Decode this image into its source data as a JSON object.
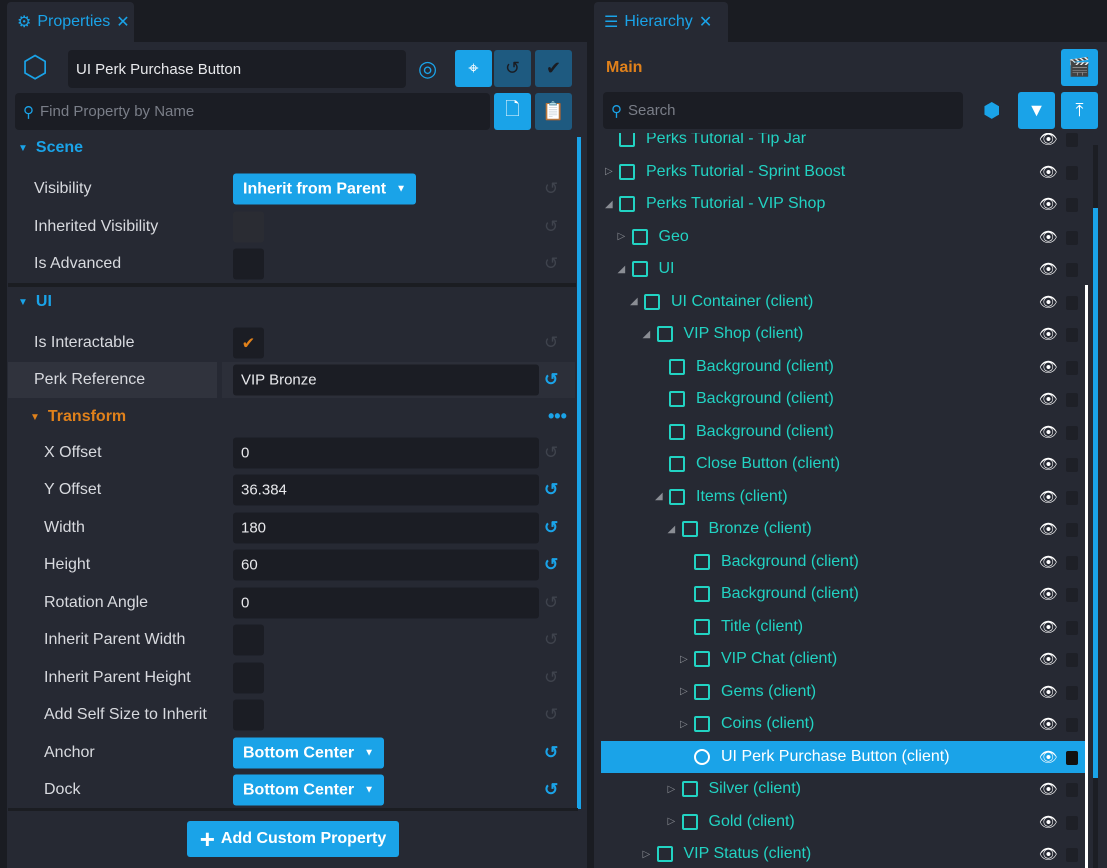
{
  "properties": {
    "tab_label": "Properties",
    "object_name": "UI Perk Purchase Button",
    "search_placeholder": "Find Property by Name",
    "sections": {
      "scene": "Scene",
      "ui": "UI",
      "transform": "Transform"
    },
    "rows": {
      "visibility": {
        "label": "Visibility",
        "value": "Inherit from Parent"
      },
      "inherited_visibility": {
        "label": "Inherited Visibility"
      },
      "is_advanced": {
        "label": "Is Advanced"
      },
      "is_interactable": {
        "label": "Is Interactable",
        "checked": true
      },
      "perk_reference": {
        "label": "Perk Reference",
        "value": "VIP Bronze"
      },
      "x_offset": {
        "label": "X Offset",
        "value": "0"
      },
      "y_offset": {
        "label": "Y Offset",
        "value": "36.384"
      },
      "width": {
        "label": "Width",
        "value": "180"
      },
      "height": {
        "label": "Height",
        "value": "60"
      },
      "rotation": {
        "label": "Rotation Angle",
        "value": "0"
      },
      "inherit_w": {
        "label": "Inherit Parent Width"
      },
      "inherit_h": {
        "label": "Inherit Parent Height"
      },
      "add_self": {
        "label": "Add Self Size to Inherit"
      },
      "anchor": {
        "label": "Anchor",
        "value": "Bottom Center"
      },
      "dock": {
        "label": "Dock",
        "value": "Bottom Center"
      }
    },
    "add_custom_label": "Add Custom Property"
  },
  "hierarchy": {
    "tab_label": "Hierarchy",
    "scope_label": "Main",
    "search_placeholder": "Search",
    "items": [
      {
        "label": "Perks Tutorial - Tip Jar",
        "level": 0,
        "arrow": "",
        "icon": "folder"
      },
      {
        "label": "Perks Tutorial - Sprint Boost",
        "level": 0,
        "arrow": "collapsed",
        "icon": "folder"
      },
      {
        "label": "Perks Tutorial - VIP Shop",
        "level": 0,
        "arrow": "expanded",
        "icon": "folder"
      },
      {
        "label": "Geo",
        "level": 1,
        "arrow": "collapsed",
        "icon": "folder"
      },
      {
        "label": "UI",
        "level": 1,
        "arrow": "expanded",
        "icon": "folder"
      },
      {
        "label": "UI Container (client)",
        "level": 2,
        "arrow": "expanded",
        "icon": "container"
      },
      {
        "label": "VIP Shop (client)",
        "level": 3,
        "arrow": "expanded",
        "icon": "panel"
      },
      {
        "label": "Background (client)",
        "level": 4,
        "arrow": "",
        "icon": "image"
      },
      {
        "label": "Background (client)",
        "level": 4,
        "arrow": "",
        "icon": "image"
      },
      {
        "label": "Background (client)",
        "level": 4,
        "arrow": "",
        "icon": "image"
      },
      {
        "label": "Close Button (client)",
        "level": 4,
        "arrow": "",
        "icon": "button"
      },
      {
        "label": "Items (client)",
        "level": 4,
        "arrow": "expanded",
        "icon": "panel"
      },
      {
        "label": "Bronze (client)",
        "level": 5,
        "arrow": "expanded",
        "icon": "image"
      },
      {
        "label": "Background (client)",
        "level": 6,
        "arrow": "",
        "icon": "image"
      },
      {
        "label": "Background (client)",
        "level": 6,
        "arrow": "",
        "icon": "image"
      },
      {
        "label": "Title (client)",
        "level": 6,
        "arrow": "",
        "icon": "text"
      },
      {
        "label": "VIP Chat (client)",
        "level": 6,
        "arrow": "collapsed",
        "icon": "image"
      },
      {
        "label": "Gems (client)",
        "level": 6,
        "arrow": "collapsed",
        "icon": "image"
      },
      {
        "label": "Coins (client)",
        "level": 6,
        "arrow": "collapsed",
        "icon": "image"
      },
      {
        "label": "UI Perk Purchase Button (client)",
        "level": 6,
        "arrow": "",
        "icon": "perk-button",
        "selected": true
      },
      {
        "label": "Silver (client)",
        "level": 5,
        "arrow": "collapsed",
        "icon": "image"
      },
      {
        "label": "Gold (client)",
        "level": 5,
        "arrow": "collapsed",
        "icon": "image"
      },
      {
        "label": "VIP Status (client)",
        "level": 3,
        "arrow": "collapsed",
        "icon": "panel"
      }
    ]
  },
  "colors": {
    "accent": "#1aa3e8",
    "tree_text": "#22d3c3",
    "section_orange": "#e0811b"
  }
}
